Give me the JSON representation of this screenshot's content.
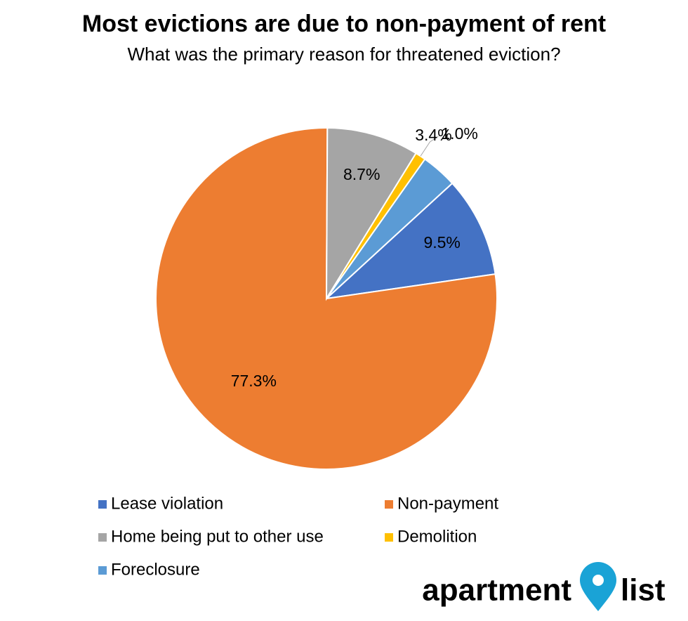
{
  "chart_data": {
    "type": "pie",
    "title": "Most evictions are due to non-payment of rent",
    "subtitle": "What was the primary reason for threatened eviction?",
    "categories": [
      "Lease violation",
      "Non-payment",
      "Home being put to other use",
      "Demolition",
      "Foreclosure"
    ],
    "values": [
      9.5,
      77.3,
      8.7,
      1.0,
      3.4
    ],
    "value_labels": [
      "9.5%",
      "77.3%",
      "8.7%",
      "1.0%",
      "3.4%"
    ],
    "colors": [
      "#4472c4",
      "#ed7d31",
      "#a5a5a5",
      "#ffc000",
      "#5b9bd5"
    ],
    "legend": "bottom"
  },
  "logo": {
    "left": "apartment",
    "right": "list"
  }
}
